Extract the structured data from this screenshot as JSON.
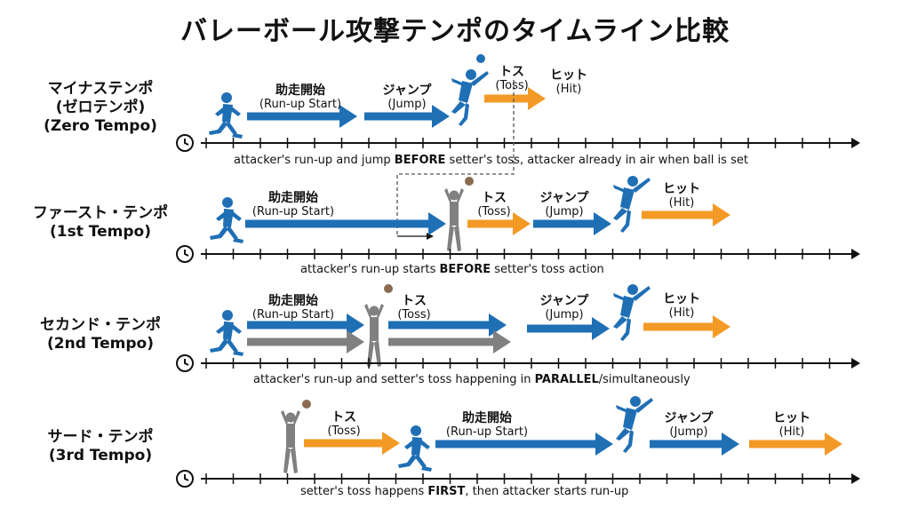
{
  "title": "バレーボール攻撃テンポのタイムライン比較",
  "colors": {
    "runup": "#1f6fb5",
    "toss": "#f39a26",
    "parallel": "#808080",
    "axis": "#111111"
  },
  "labels": {
    "runup": {
      "jp": "助走開始",
      "en": "(Run-up Start)"
    },
    "jump": {
      "jp": "ジャンプ",
      "en": "(Jump)"
    },
    "toss": {
      "jp": "トス",
      "en": "(Toss)"
    },
    "hit": {
      "jp": "ヒット",
      "en": "(Hit)"
    }
  },
  "rows": [
    {
      "name": [
        "マイナステンポ",
        "(ゼロテンポ)",
        "(Zero Tempo)"
      ],
      "caption": {
        "pre": "attacker's run-up and jump ",
        "em": "BEFORE",
        "post": " setter's toss, attacker already in air when ball is set"
      }
    },
    {
      "name": [
        "ファースト・テンポ",
        "(1st Tempo)"
      ],
      "caption": {
        "pre": "attacker's run-up starts ",
        "em": "BEFORE",
        "post": " setter's toss action"
      }
    },
    {
      "name": [
        "セカンド・テンポ",
        "(2nd Tempo)"
      ],
      "caption": {
        "pre": "attacker's run-up and setter's toss happening in ",
        "em": "PARALLEL",
        "post": "/simultaneously"
      }
    },
    {
      "name": [
        "サード・テンポ",
        "(3rd Tempo)"
      ],
      "caption": {
        "pre": "setter's toss happens ",
        "em": "FIRST",
        "post": ", then attacker starts run-up"
      }
    }
  ]
}
